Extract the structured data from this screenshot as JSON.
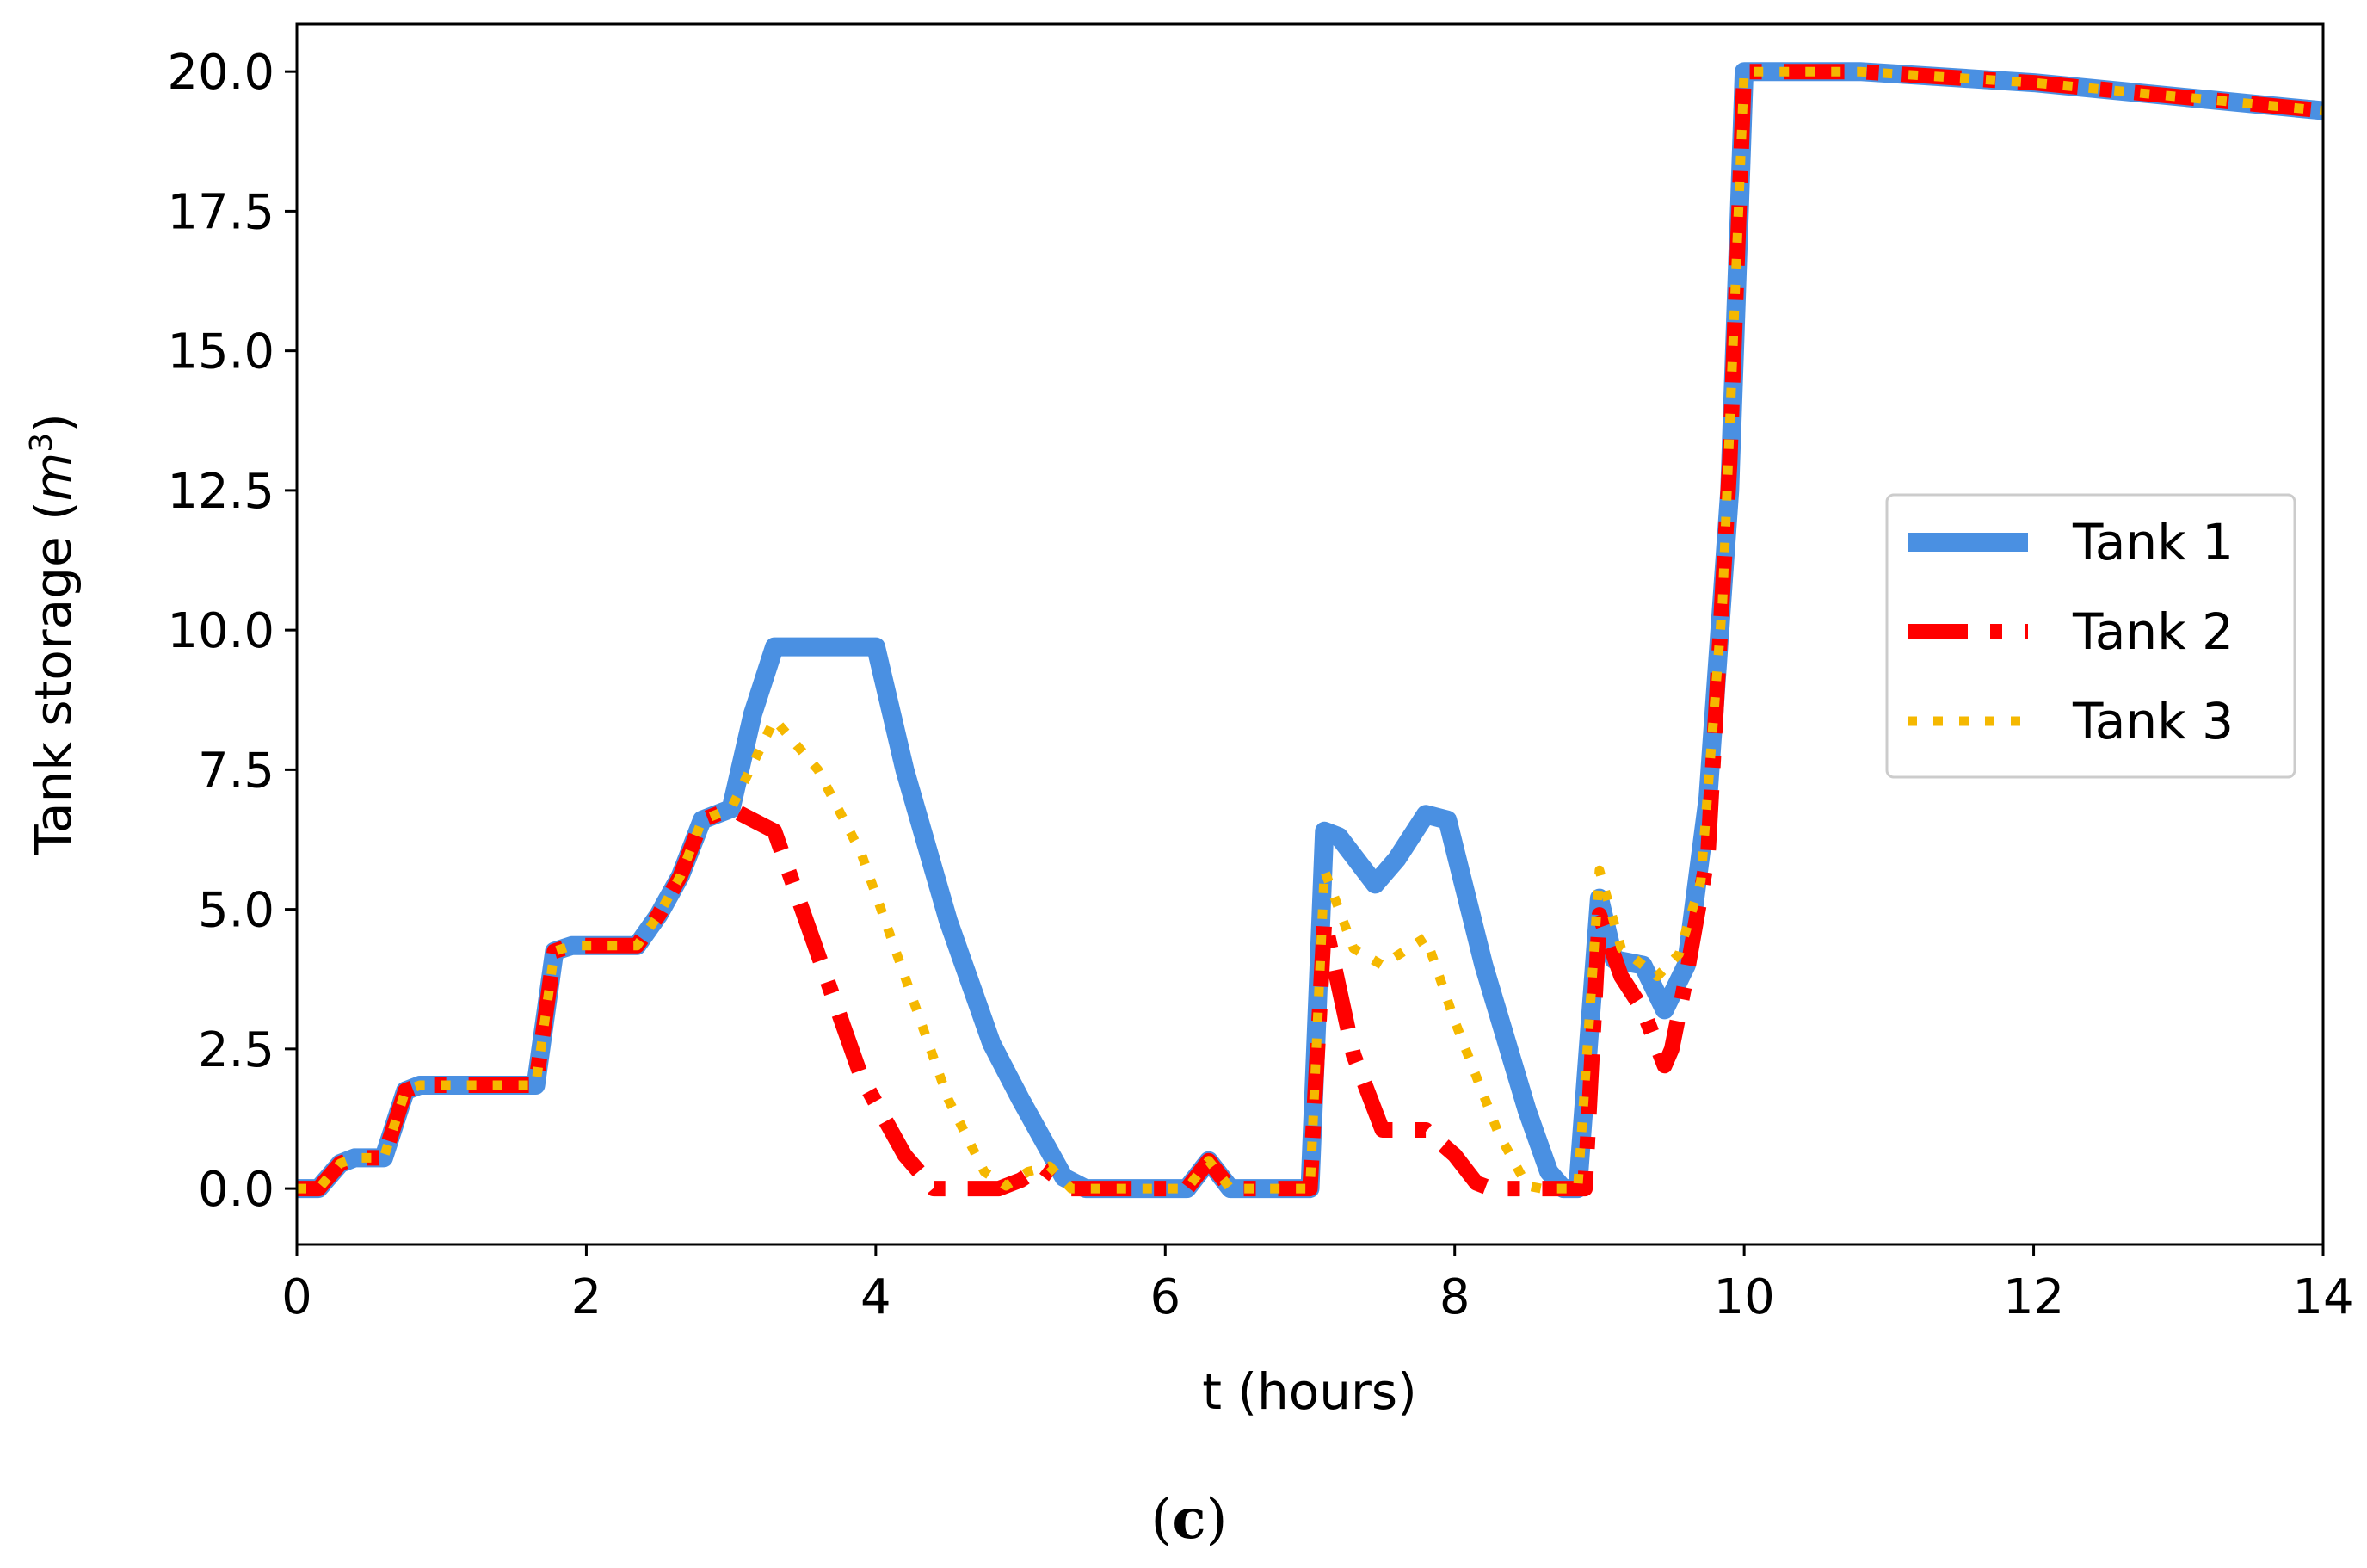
{
  "chart_data": {
    "type": "line",
    "xlabel": "t (hours)",
    "ylabel": {
      "main": "Tank storage (",
      "var": "m",
      "sup": "3",
      "end": ")"
    },
    "xlim": [
      0,
      14
    ],
    "ylim": [
      -1,
      20.85
    ],
    "xticks": [
      0,
      2,
      4,
      6,
      8,
      10,
      12,
      14
    ],
    "xtick_labels": [
      "0",
      "2",
      "4",
      "6",
      "8",
      "10",
      "12",
      "14"
    ],
    "yticks": [
      0,
      2.5,
      5,
      7.5,
      10,
      12.5,
      15,
      17.5,
      20
    ],
    "ytick_labels": [
      "0.0",
      "2.5",
      "5.0",
      "7.5",
      "10.0",
      "12.5",
      "15.0",
      "17.5",
      "20.0"
    ],
    "grid": false,
    "legend_position": "center-right",
    "series": [
      {
        "name": "Tank 1",
        "color": "#4a90e2",
        "style": "solid",
        "points": [
          [
            0,
            0
          ],
          [
            0.15,
            0
          ],
          [
            0.3,
            0.45
          ],
          [
            0.4,
            0.55
          ],
          [
            0.6,
            0.55
          ],
          [
            0.75,
            1.75
          ],
          [
            0.85,
            1.85
          ],
          [
            1.65,
            1.85
          ],
          [
            1.78,
            4.25
          ],
          [
            1.9,
            4.35
          ],
          [
            2.35,
            4.35
          ],
          [
            2.5,
            4.9
          ],
          [
            2.65,
            5.6
          ],
          [
            2.8,
            6.6
          ],
          [
            3.0,
            6.8
          ],
          [
            3.15,
            8.5
          ],
          [
            3.3,
            9.7
          ],
          [
            4.0,
            9.7
          ],
          [
            4.2,
            7.5
          ],
          [
            4.5,
            4.8
          ],
          [
            4.8,
            2.6
          ],
          [
            5.0,
            1.6
          ],
          [
            5.15,
            0.9
          ],
          [
            5.3,
            0.2
          ],
          [
            5.45,
            0
          ],
          [
            6.15,
            0
          ],
          [
            6.3,
            0.5
          ],
          [
            6.45,
            0
          ],
          [
            7.0,
            0
          ],
          [
            7.1,
            6.4
          ],
          [
            7.2,
            6.3
          ],
          [
            7.45,
            5.45
          ],
          [
            7.6,
            5.9
          ],
          [
            7.8,
            6.7
          ],
          [
            7.95,
            6.6
          ],
          [
            8.2,
            4.0
          ],
          [
            8.5,
            1.4
          ],
          [
            8.65,
            0.3
          ],
          [
            8.75,
            0
          ],
          [
            8.85,
            0
          ],
          [
            9.0,
            5.2
          ],
          [
            9.1,
            4.1
          ],
          [
            9.3,
            4.0
          ],
          [
            9.45,
            3.2
          ],
          [
            9.6,
            4.0
          ],
          [
            9.75,
            7.0
          ],
          [
            9.9,
            12.5
          ],
          [
            10.0,
            20.0
          ],
          [
            10.8,
            20.0
          ],
          [
            12.0,
            19.8
          ],
          [
            14.0,
            19.3
          ]
        ]
      },
      {
        "name": "Tank 2",
        "color": "#ff0000",
        "style": "dashdot",
        "points": [
          [
            0,
            0
          ],
          [
            0.15,
            0
          ],
          [
            0.3,
            0.45
          ],
          [
            0.4,
            0.55
          ],
          [
            0.6,
            0.55
          ],
          [
            0.75,
            1.75
          ],
          [
            0.85,
            1.85
          ],
          [
            1.65,
            1.85
          ],
          [
            1.78,
            4.25
          ],
          [
            1.9,
            4.35
          ],
          [
            2.35,
            4.35
          ],
          [
            2.5,
            4.9
          ],
          [
            2.65,
            5.6
          ],
          [
            2.8,
            6.6
          ],
          [
            3.0,
            6.8
          ],
          [
            3.3,
            6.4
          ],
          [
            3.6,
            4.2
          ],
          [
            3.9,
            2.0
          ],
          [
            4.2,
            0.6
          ],
          [
            4.4,
            0
          ],
          [
            4.85,
            0
          ],
          [
            5.0,
            0.15
          ],
          [
            5.15,
            0.4
          ],
          [
            5.35,
            0
          ],
          [
            6.15,
            0
          ],
          [
            6.3,
            0.5
          ],
          [
            6.45,
            0
          ],
          [
            7.0,
            0
          ],
          [
            7.1,
            4.8
          ],
          [
            7.3,
            2.4
          ],
          [
            7.5,
            1.05
          ],
          [
            7.8,
            1.05
          ],
          [
            8.0,
            0.6
          ],
          [
            8.15,
            0.1
          ],
          [
            8.25,
            0
          ],
          [
            8.9,
            0
          ],
          [
            9.0,
            4.9
          ],
          [
            9.15,
            3.8
          ],
          [
            9.3,
            3.2
          ],
          [
            9.45,
            2.2
          ],
          [
            9.5,
            2.5
          ],
          [
            9.6,
            3.8
          ],
          [
            9.75,
            6.0
          ],
          [
            9.9,
            13.0
          ],
          [
            10.0,
            20.0
          ],
          [
            10.8,
            20.0
          ],
          [
            12.0,
            19.8
          ],
          [
            14.0,
            19.3
          ]
        ]
      },
      {
        "name": "Tank 3",
        "color": "#f5b800",
        "style": "dotted",
        "points": [
          [
            0,
            0
          ],
          [
            0.15,
            0
          ],
          [
            0.3,
            0.45
          ],
          [
            0.4,
            0.55
          ],
          [
            0.6,
            0.55
          ],
          [
            0.75,
            1.75
          ],
          [
            0.85,
            1.85
          ],
          [
            1.65,
            1.85
          ],
          [
            1.78,
            4.25
          ],
          [
            1.9,
            4.35
          ],
          [
            2.35,
            4.35
          ],
          [
            2.5,
            4.9
          ],
          [
            2.65,
            5.6
          ],
          [
            2.8,
            6.6
          ],
          [
            3.0,
            6.8
          ],
          [
            3.3,
            8.4
          ],
          [
            3.6,
            7.5
          ],
          [
            3.9,
            6.0
          ],
          [
            4.2,
            3.8
          ],
          [
            4.5,
            1.6
          ],
          [
            4.75,
            0.3
          ],
          [
            4.9,
            0.05
          ],
          [
            5.05,
            0.3
          ],
          [
            5.2,
            0.4
          ],
          [
            5.35,
            0
          ],
          [
            6.15,
            0
          ],
          [
            6.3,
            0.5
          ],
          [
            6.45,
            0
          ],
          [
            7.0,
            0
          ],
          [
            7.1,
            5.7
          ],
          [
            7.3,
            4.3
          ],
          [
            7.5,
            4.0
          ],
          [
            7.8,
            4.5
          ],
          [
            8.0,
            3.0
          ],
          [
            8.3,
            1.0
          ],
          [
            8.5,
            0.05
          ],
          [
            8.6,
            0
          ],
          [
            8.85,
            0
          ],
          [
            9.0,
            5.7
          ],
          [
            9.15,
            4.3
          ],
          [
            9.4,
            3.8
          ],
          [
            9.55,
            4.2
          ],
          [
            9.7,
            5.5
          ],
          [
            9.85,
            10.5
          ],
          [
            10.0,
            20.0
          ],
          [
            10.8,
            20.0
          ],
          [
            12.0,
            19.8
          ],
          [
            14.0,
            19.3
          ]
        ]
      }
    ]
  },
  "caption": {
    "open": "(",
    "letter": "c",
    "close": ")"
  }
}
